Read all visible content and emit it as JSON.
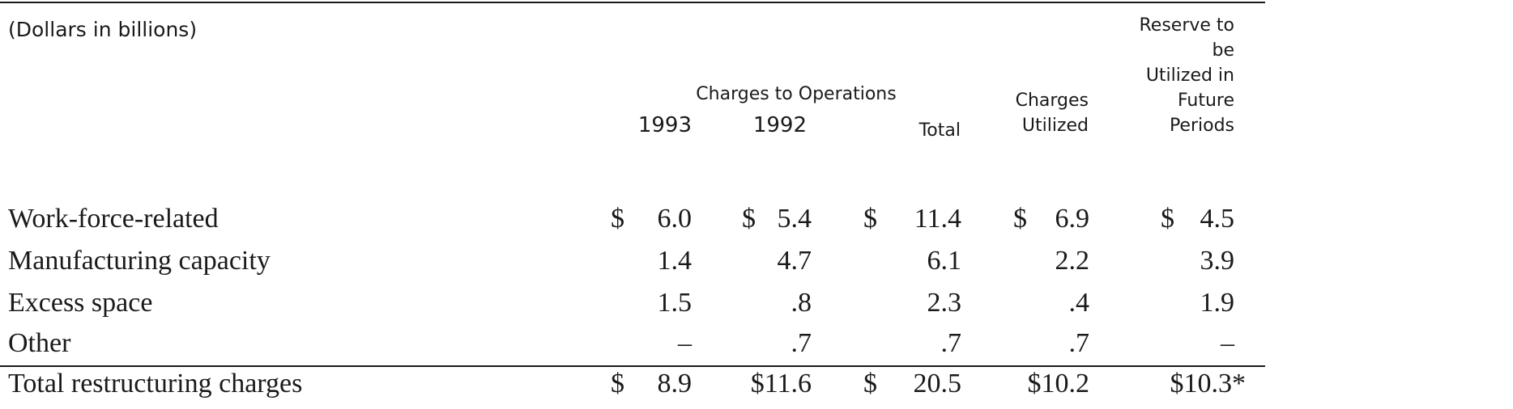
{
  "table": {
    "units_note": "(Dollars in billions)",
    "group_header": "Charges to Operations",
    "headers": {
      "y1993": "1993",
      "y1992": "1992",
      "total": "Total",
      "utilized_l1": "Charges",
      "utilized_l2": "Utilized",
      "reserve_l1": "Reserve to be",
      "reserve_l2": "Utilized in",
      "reserve_l3": "Future",
      "reserve_l4": "Periods"
    },
    "rows": [
      {
        "label": "Work-force-related",
        "c1993": {
          "cur": "$",
          "num": "6.0"
        },
        "c1992": {
          "cur": "$",
          "num": "5.4"
        },
        "total": {
          "cur": "$",
          "num": "11.4"
        },
        "utilized": {
          "cur": "$",
          "num": "6.9"
        },
        "reserve": {
          "cur": "$",
          "num": "4.5"
        }
      },
      {
        "label": "Manufacturing capacity",
        "c1993": {
          "cur": "",
          "num": "1.4"
        },
        "c1992": {
          "cur": "",
          "num": "4.7"
        },
        "total": {
          "cur": "",
          "num": "6.1"
        },
        "utilized": {
          "cur": "",
          "num": "2.2"
        },
        "reserve": {
          "cur": "",
          "num": "3.9"
        }
      },
      {
        "label": "Excess space",
        "c1993": {
          "cur": "",
          "num": "1.5"
        },
        "c1992": {
          "cur": "",
          "num": ".8"
        },
        "total": {
          "cur": "",
          "num": "2.3"
        },
        "utilized": {
          "cur": "",
          "num": ".4"
        },
        "reserve": {
          "cur": "",
          "num": "1.9"
        }
      },
      {
        "label": "Other",
        "c1993": {
          "cur": "",
          "num": "–"
        },
        "c1992": {
          "cur": "",
          "num": ".7"
        },
        "total": {
          "cur": "",
          "num": ".7"
        },
        "utilized": {
          "cur": "",
          "num": ".7"
        },
        "reserve": {
          "cur": "",
          "num": "–"
        }
      }
    ],
    "total_row": {
      "label": "Total restructuring charges",
      "c1993": {
        "cur": "$",
        "num": "8.9"
      },
      "c1992": {
        "cur": "",
        "num": "$11.6"
      },
      "total": {
        "cur": "$",
        "num": "20.5"
      },
      "utilized": {
        "cur": "",
        "num": "$10.2"
      },
      "reserve": {
        "cur": "",
        "num": "$10.3*"
      }
    }
  }
}
